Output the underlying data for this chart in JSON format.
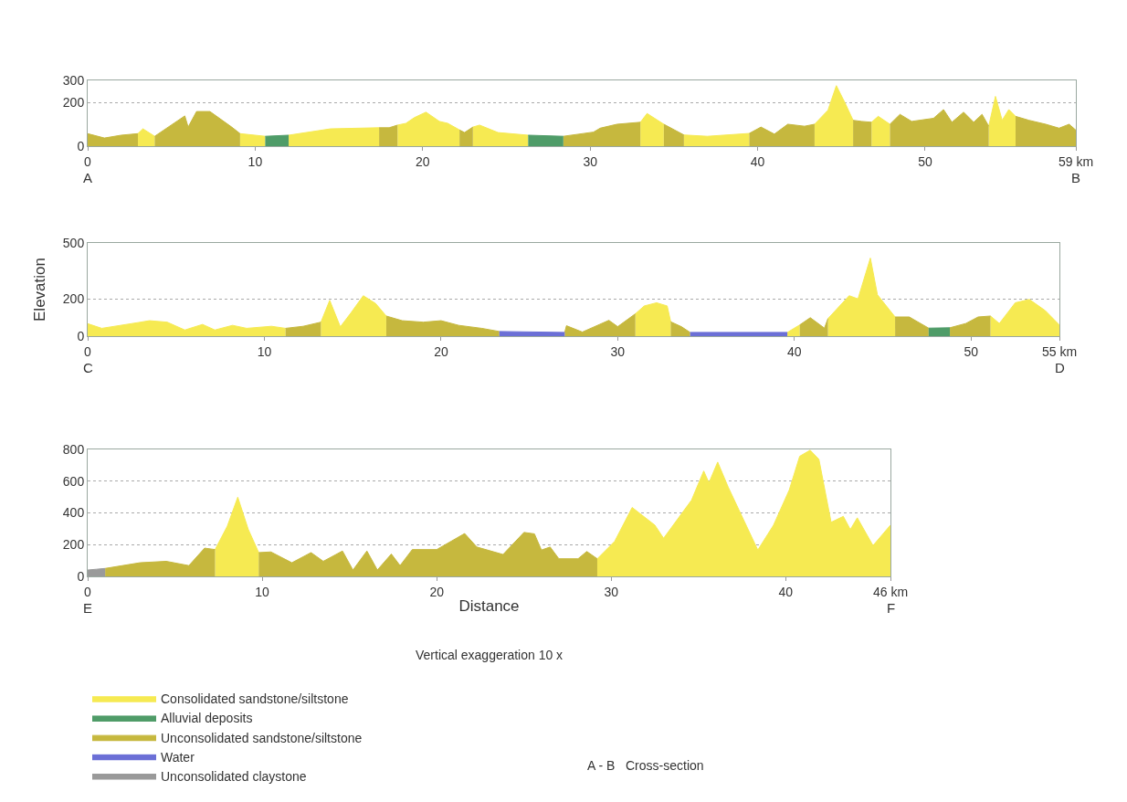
{
  "chart_data": [
    {
      "type": "area",
      "xlim": [
        0,
        59
      ],
      "xticks": [
        0,
        10,
        20,
        30,
        40,
        50,
        {
          "value": 59,
          "label": "59 km"
        }
      ],
      "ylim": [
        0,
        300
      ],
      "yticks": [
        0,
        200,
        300
      ],
      "grid": "y",
      "legend": false,
      "annotations": [
        "A",
        "B"
      ],
      "series": [
        {
          "color": "#f6ea52",
          "x": [
            3.0,
            3.3,
            4.0,
            null,
            9.1,
            10.6,
            null,
            12.0,
            14.5,
            17.4,
            null,
            18.5,
            19.0,
            19.5,
            20.2,
            21.0,
            21.5,
            22.2,
            null,
            23.0,
            23.4,
            24.5,
            26.3,
            null,
            33.0,
            33.4,
            34.4,
            null,
            35.6,
            37.0,
            39.5,
            null,
            43.4,
            44.2,
            44.7,
            45.2,
            45.7,
            null,
            46.8,
            47.2,
            47.9,
            null,
            53.8,
            54.2,
            54.6,
            55.0,
            55.4
          ],
          "values": [
            57,
            79,
            45,
            null,
            57,
            45,
            null,
            50,
            79,
            84,
            null,
            96,
            104,
            130,
            155,
            113,
            104,
            74,
            null,
            87,
            96,
            62,
            50,
            null,
            109,
            149,
            100,
            null,
            51,
            45,
            58,
            null,
            100,
            164,
            276,
            200,
            118,
            null,
            109,
            136,
            100,
            null,
            91,
            227,
            118,
            167,
            136
          ]
        },
        {
          "color": "#c6b83e",
          "x": [
            0,
            1,
            2,
            3.0,
            null,
            4.0,
            5.8,
            6.0,
            6.5,
            7.3,
            8.6,
            9.1,
            null,
            17.4,
            18.0,
            18.5,
            null,
            22.2,
            22.5,
            23.0,
            null,
            28.4,
            30.2,
            30.6,
            31.6,
            33.0,
            null,
            34.4,
            35.6,
            null,
            39.5,
            40.2,
            41.0,
            41.8,
            42.8,
            43.4,
            null,
            45.7,
            46.2,
            46.8,
            null,
            47.9,
            48.5,
            49.2,
            50.5,
            51.1,
            51.6,
            52.3,
            52.9,
            53.4,
            53.8,
            null,
            55.4,
            56.2,
            57.2,
            58.0,
            58.6,
            59
          ],
          "values": [
            57,
            37,
            50,
            57,
            null,
            45,
            138,
            87,
            158,
            158,
            87,
            57,
            null,
            84,
            84,
            96,
            null,
            74,
            62,
            87,
            null,
            45,
            64,
            82,
            100,
            109,
            null,
            100,
            51,
            null,
            58,
            87,
            55,
            100,
            91,
            100,
            null,
            118,
            113,
            109,
            null,
            100,
            145,
            113,
            127,
            167,
            109,
            155,
            109,
            145,
            91,
            null,
            136,
            118,
            100,
            82,
            100,
            73
          ]
        },
        {
          "color": "#4f9c68",
          "x": [
            10.6,
            12.0,
            null,
            26.3,
            28.4
          ],
          "values": [
            45,
            50,
            null,
            50,
            45
          ]
        }
      ]
    },
    {
      "type": "area",
      "xlim": [
        0,
        55
      ],
      "xticks": [
        0,
        10,
        20,
        30,
        40,
        50,
        {
          "value": 55,
          "label": "55 km"
        }
      ],
      "ylim": [
        0,
        500
      ],
      "yticks": [
        0,
        200,
        500
      ],
      "ylabel": "Elevation",
      "grid": "y",
      "legend": false,
      "annotations": [
        "C",
        "D"
      ],
      "series": [
        {
          "color": "#f6ea52",
          "x": [
            0,
            0.8,
            3.0,
            3.5,
            4.5,
            5.5,
            6.5,
            7.2,
            8.2,
            9.0,
            10.4,
            11.2,
            null,
            13.2,
            13.7,
            14.3,
            14.9,
            15.6,
            16.3,
            16.9,
            null,
            31.0,
            31.5,
            32.2,
            32.8,
            33.0,
            null,
            39.6,
            40.0,
            40.3,
            null,
            41.9,
            43.1,
            43.6,
            44.3,
            44.7,
            45.7,
            null,
            51.1,
            51.6,
            52.5,
            53.3,
            54.2,
            55
          ],
          "values": [
            67,
            42,
            75,
            83,
            75,
            33,
            63,
            33,
            58,
            42,
            53,
            42,
            null,
            75,
            192,
            50,
            125,
            217,
            175,
            108,
            null,
            120,
            162,
            179,
            162,
            77,
            null,
            20,
            43,
            60,
            null,
            94,
            217,
            200,
            419,
            222,
            103,
            null,
            108,
            68,
            179,
            197,
            137,
            60
          ]
        },
        {
          "color": "#c6b83e",
          "x": [
            11.2,
            12.2,
            13.2,
            null,
            16.9,
            17.8,
            19.0,
            20.0,
            21.0,
            22.3,
            23.3,
            null,
            27.0,
            27.1,
            28.0,
            29.5,
            30.0,
            31.0,
            null,
            33.0,
            33.6,
            34.1,
            null,
            40.3,
            40.9,
            41.7,
            41.9,
            null,
            45.7,
            46.5,
            47.6,
            null,
            48.8,
            49.7,
            50.4,
            51.1
          ],
          "values": [
            42,
            53,
            75,
            null,
            108,
            83,
            75,
            83,
            58,
            42,
            25,
            null,
            20,
            56,
            22,
            85,
            51,
            120,
            null,
            77,
            51,
            20,
            null,
            60,
            99,
            43,
            94,
            null,
            103,
            103,
            43,
            null,
            45,
            68,
            103,
            108
          ]
        },
        {
          "color": "#6b6fd6",
          "x": [
            23.3,
            27.0,
            null,
            34.1,
            39.6
          ],
          "values": [
            25,
            20,
            null,
            20,
            20
          ]
        },
        {
          "color": "#4f9c68",
          "x": [
            47.6,
            48.8
          ],
          "values": [
            43,
            45
          ]
        }
      ]
    },
    {
      "type": "area",
      "xlim": [
        0,
        46
      ],
      "xticks": [
        0,
        10,
        20,
        30,
        40,
        {
          "value": 46,
          "label": "46 km"
        }
      ],
      "ylim": [
        0,
        800
      ],
      "yticks": [
        0,
        200,
        400,
        600,
        800
      ],
      "xlabel": "Distance",
      "grid": "y",
      "legend": "bottom",
      "annotations": [
        "E",
        "F",
        "Vertical exaggeration 10 x",
        "A - B   Cross-section"
      ],
      "series": [
        {
          "name": "Consolidated sandstone/siltstone",
          "color": "#f6ea52",
          "x": [
            7.3,
            8.0,
            8.6,
            9.2,
            9.8,
            null,
            29.2,
            30.2,
            31.2,
            32.5,
            33.0,
            34.6,
            35.3,
            35.6,
            36.1,
            36.7,
            38.4,
            39.3,
            40.2,
            40.8,
            41.4,
            41.9,
            42.6,
            43.3,
            43.7,
            44.1,
            45.0,
            46.0
          ],
          "values": [
            169,
            316,
            499,
            297,
            150,
            null,
            111,
            221,
            434,
            323,
            240,
            480,
            664,
            590,
            720,
            563,
            166,
            323,
            544,
            757,
            795,
            738,
            341,
            378,
            295,
            369,
            194,
            323
          ]
        },
        {
          "name": "Alluvial deposits",
          "color": "#4f9c68"
        },
        {
          "name": "Unconsolidated sandstone/siltstone",
          "color": "#c6b83e",
          "x": [
            1.0,
            3.0,
            4.5,
            5.8,
            6.7,
            7.3,
            null,
            9.8,
            10.5,
            11.7,
            12.8,
            13.5,
            14.6,
            15.2,
            16.0,
            16.6,
            17.4,
            17.9,
            18.6,
            20.0,
            21.6,
            22.3,
            23.8,
            25.0,
            25.6,
            26.0,
            26.5,
            27.0,
            28.1,
            28.6,
            29.2
          ],
          "values": [
            50,
            86,
            95,
            68,
            178,
            169,
            null,
            150,
            154,
            86,
            150,
            95,
            160,
            40,
            160,
            40,
            141,
            68,
            169,
            169,
            270,
            185,
            138,
            277,
            268,
            166,
            185,
            111,
            111,
            157,
            111
          ]
        },
        {
          "name": "Water",
          "color": "#6b6fd6"
        },
        {
          "name": "Unconsolidated claystone",
          "color": "#9a9a9a",
          "x": [
            0,
            0.5,
            1.0
          ],
          "values": [
            40,
            45,
            50
          ]
        }
      ]
    }
  ]
}
